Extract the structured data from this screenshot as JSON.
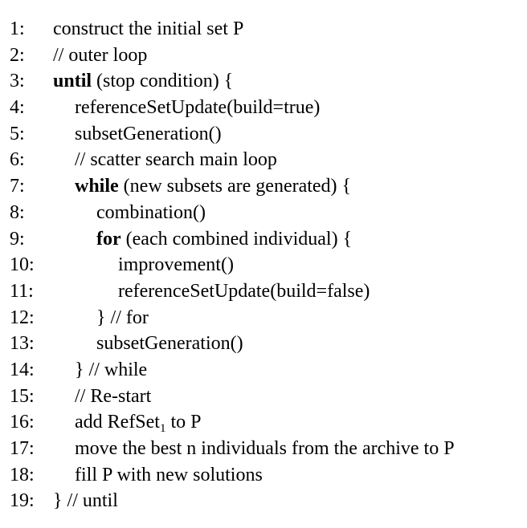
{
  "lines": [
    {
      "num": "1:",
      "parts": [
        "construct the initial set P"
      ]
    },
    {
      "num": "2:",
      "parts": [
        "// outer loop"
      ]
    },
    {
      "num": "3:",
      "kw": "until",
      "rest": " (stop condition) {"
    },
    {
      "num": "4:",
      "parts": [
        "referenceSetUpdate(build=true)"
      ]
    },
    {
      "num": "5:",
      "parts": [
        "subsetGeneration()"
      ]
    },
    {
      "num": "6:",
      "parts": [
        "// scatter search main loop"
      ]
    },
    {
      "num": "7:",
      "kw": "while",
      "rest": " (new subsets are generated) {"
    },
    {
      "num": "8:",
      "parts": [
        "combination()"
      ]
    },
    {
      "num": "9:",
      "kw": "for",
      "rest": " (each combined individual) {"
    },
    {
      "num": "10:",
      "parts": [
        "improvement()"
      ]
    },
    {
      "num": "11:",
      "parts": [
        "referenceSetUpdate(build=false)"
      ]
    },
    {
      "num": "12:",
      "parts": [
        "} // for"
      ]
    },
    {
      "num": "13:",
      "parts": [
        "subsetGeneration()"
      ]
    },
    {
      "num": "14:",
      "parts": [
        "} // while"
      ]
    },
    {
      "num": "15:",
      "parts": [
        "// Re-start"
      ]
    },
    {
      "num": "16:",
      "pre": "add RefSet",
      "sub": "1",
      "post": " to P"
    },
    {
      "num": "17:",
      "parts": [
        "move the best n individuals from the archive to P"
      ]
    },
    {
      "num": "18:",
      "parts": [
        "fill P with new solutions"
      ]
    },
    {
      "num": "19:",
      "parts": [
        "} // until"
      ]
    }
  ]
}
